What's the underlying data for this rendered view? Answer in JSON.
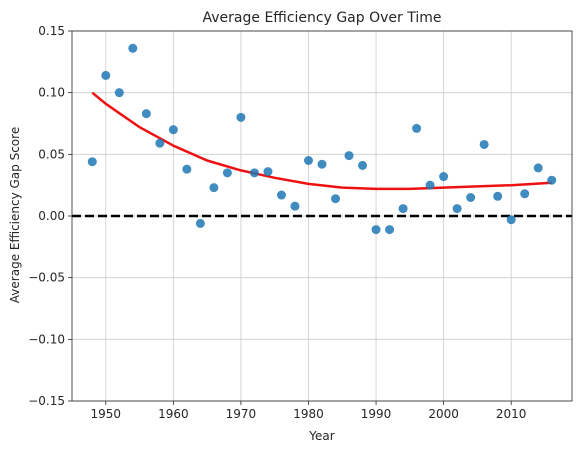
{
  "chart_data": {
    "type": "scatter",
    "title": "Average Efficiency Gap Over Time",
    "xlabel": "Year",
    "ylabel": "Average Efficiency Gap Score",
    "xlim": [
      1945,
      2019
    ],
    "ylim": [
      -0.15,
      0.15
    ],
    "xticks": [
      1950,
      1960,
      1970,
      1980,
      1990,
      2000,
      2010
    ],
    "yticks": [
      -0.15,
      -0.1,
      -0.05,
      0.0,
      0.05,
      0.1,
      0.15
    ],
    "ytick_labels": [
      "−0.15",
      "−0.10",
      "−0.05",
      "0.00",
      "0.05",
      "0.10",
      "0.15"
    ],
    "grid": true,
    "colors": {
      "points": "#1f77b4",
      "trend": "#ee1111",
      "zero_line": "#000000"
    },
    "series": [
      {
        "type": "scatter",
        "x": [
          1948,
          1950,
          1952,
          1954,
          1956,
          1958,
          1960,
          1962,
          1964,
          1966,
          1968,
          1970,
          1972,
          1974,
          1976,
          1978,
          1980,
          1982,
          1984,
          1986,
          1988,
          1990,
          1992,
          1994,
          1996,
          1998,
          2000,
          2002,
          2004,
          2006,
          2008,
          2010,
          2012,
          2014,
          2016
        ],
        "y": [
          0.044,
          0.114,
          0.1,
          0.136,
          0.083,
          0.059,
          0.07,
          0.038,
          -0.006,
          0.023,
          0.035,
          0.08,
          0.035,
          0.036,
          0.017,
          0.008,
          0.045,
          0.042,
          0.014,
          0.049,
          0.041,
          -0.011,
          -0.011,
          0.006,
          0.071,
          0.025,
          0.032,
          0.006,
          0.015,
          0.058,
          0.016,
          -0.003,
          0.018,
          0.039,
          0.029
        ]
      },
      {
        "type": "line",
        "style": "quadratic-fit",
        "x": [
          1948,
          1950,
          1955,
          1960,
          1965,
          1970,
          1975,
          1980,
          1985,
          1990,
          1995,
          2000,
          2005,
          2010,
          2016
        ],
        "y": [
          0.1,
          0.091,
          0.072,
          0.057,
          0.045,
          0.037,
          0.031,
          0.026,
          0.023,
          0.022,
          0.022,
          0.023,
          0.024,
          0.025,
          0.027
        ]
      },
      {
        "type": "hline",
        "style": "dashed",
        "y": 0.0
      }
    ]
  }
}
